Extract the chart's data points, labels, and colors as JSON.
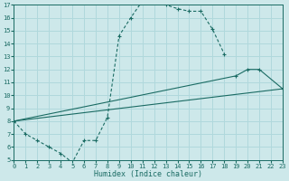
{
  "xlabel": "Humidex (Indice chaleur)",
  "xlim": [
    0,
    23
  ],
  "ylim": [
    5,
    17
  ],
  "xticks": [
    0,
    1,
    2,
    3,
    4,
    5,
    6,
    7,
    8,
    9,
    10,
    11,
    12,
    13,
    14,
    15,
    16,
    17,
    18,
    19,
    20,
    21,
    22,
    23
  ],
  "yticks": [
    5,
    6,
    7,
    8,
    9,
    10,
    11,
    12,
    13,
    14,
    15,
    16,
    17
  ],
  "bg_color": "#cde8ea",
  "line_color": "#1a6b63",
  "grid_color": "#b0d8dc",
  "line1_x": [
    0,
    1,
    2,
    3,
    4,
    5,
    6,
    7,
    8,
    9,
    10,
    11,
    12,
    13,
    14,
    15,
    16,
    17,
    18
  ],
  "line1_y": [
    8.0,
    7.0,
    6.5,
    6.0,
    5.5,
    4.8,
    6.5,
    6.5,
    8.3,
    14.6,
    16.0,
    17.3,
    17.3,
    17.0,
    16.7,
    16.5,
    16.5,
    15.1,
    13.2
  ],
  "line2_x": [
    0,
    19,
    20,
    21,
    23
  ],
  "line2_y": [
    8.0,
    11.5,
    12.0,
    12.0,
    10.5
  ],
  "line3_x": [
    0,
    23
  ],
  "line3_y": [
    8.0,
    10.5
  ]
}
